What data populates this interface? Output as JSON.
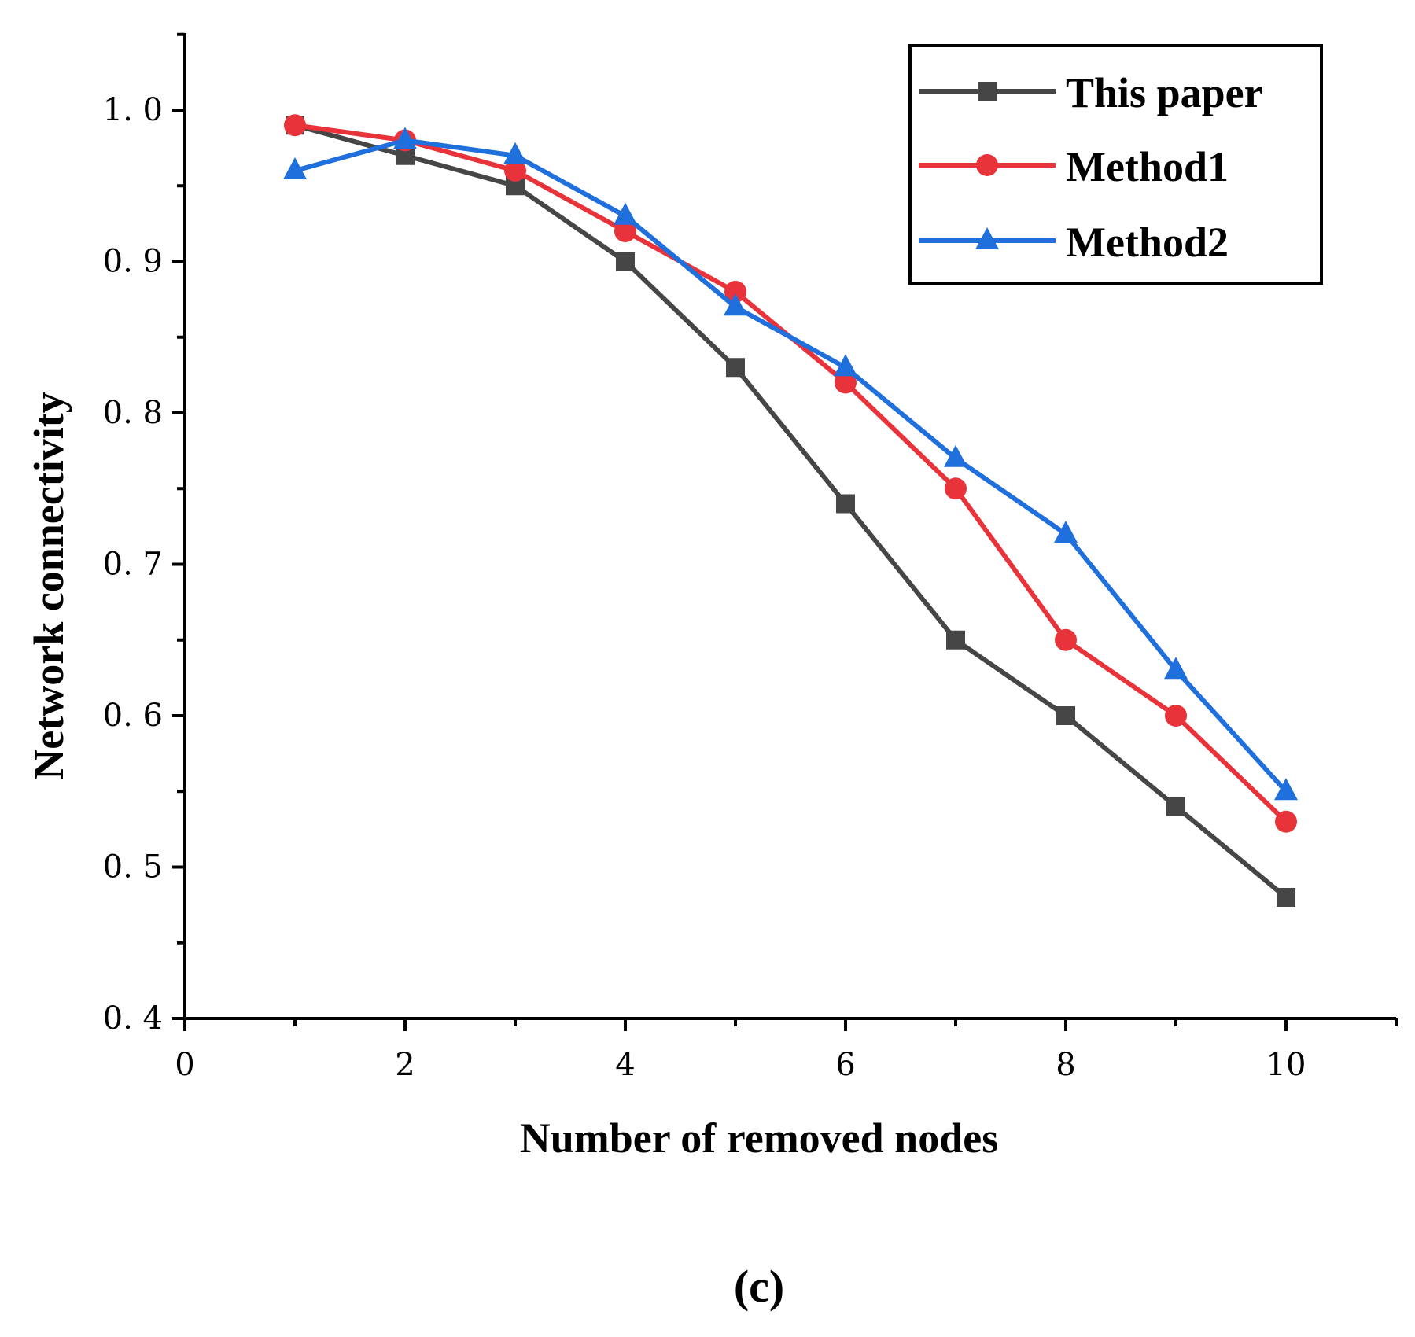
{
  "chart_data": {
    "type": "line",
    "title": "",
    "xlabel": "Number of removed nodes",
    "ylabel": "Network connectivity",
    "xlim": [
      0,
      11
    ],
    "ylim": [
      0.4,
      1.05
    ],
    "x_ticks": [
      0,
      2,
      4,
      6,
      8,
      10
    ],
    "x_tick_labels": [
      "0",
      "2",
      "4",
      "6",
      "8",
      "10"
    ],
    "y_ticks": [
      0.4,
      0.5,
      0.6,
      0.7,
      0.8,
      0.9,
      1.0
    ],
    "y_tick_labels": [
      "0. 4",
      "0. 5",
      "0. 6",
      "0. 7",
      "0. 8",
      "0. 9",
      "1. 0"
    ],
    "grid": false,
    "legend_position": "top-right",
    "x": [
      1,
      2,
      3,
      4,
      5,
      6,
      7,
      8,
      9,
      10
    ],
    "series": [
      {
        "name": "This paper",
        "marker": "square",
        "color": "#464646",
        "values": [
          0.99,
          0.97,
          0.95,
          0.9,
          0.83,
          0.74,
          0.65,
          0.6,
          0.54,
          0.48
        ]
      },
      {
        "name": "Method1",
        "marker": "circle",
        "color": "#e8333a",
        "values": [
          0.99,
          0.98,
          0.96,
          0.92,
          0.88,
          0.82,
          0.75,
          0.65,
          0.6,
          0.53
        ]
      },
      {
        "name": "Method2",
        "marker": "triangle",
        "color": "#1f6fdc",
        "values": [
          0.96,
          0.98,
          0.97,
          0.93,
          0.87,
          0.83,
          0.77,
          0.72,
          0.63,
          0.55
        ]
      }
    ],
    "caption": "(c)"
  }
}
